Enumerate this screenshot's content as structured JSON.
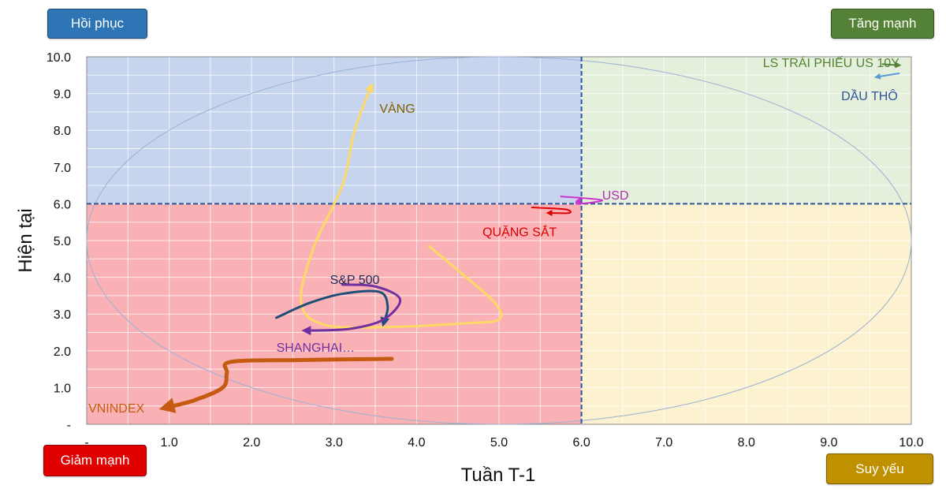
{
  "quadrant_buttons": {
    "top_left": "Hồi phục",
    "top_right": "Tăng mạnh",
    "bottom_left": "Giảm mạnh",
    "bottom_right": "Suy yếu"
  },
  "colors": {
    "q_top_left": "#c6d4ee",
    "q_top_right": "#e4efdc",
    "q_bottom_left": "#f9b1b5",
    "q_bottom_right": "#fdf2cf",
    "divider": "#2f5597",
    "circle": "#9db1d3"
  },
  "chart_data": {
    "type": "line",
    "xlabel": "Tuần T-1",
    "ylabel": "Hiện tại",
    "xlim": [
      0,
      10
    ],
    "ylim": [
      0,
      10
    ],
    "grid": true,
    "center": [
      6,
      6
    ],
    "x_ticks": [
      "-",
      "1.0",
      "2.0",
      "3.0",
      "4.0",
      "5.0",
      "6.0",
      "7.0",
      "8.0",
      "9.0",
      "10.0"
    ],
    "y_ticks": [
      "-",
      "1.0",
      "2.0",
      "3.0",
      "4.0",
      "5.0",
      "6.0",
      "7.0",
      "8.0",
      "9.0",
      "10.0"
    ],
    "series": [
      {
        "name": "VÀNG",
        "color": "#ffd966",
        "label_color": "#7f6000",
        "points": [
          [
            4.15,
            4.85
          ],
          [
            4.55,
            4.1
          ],
          [
            4.95,
            3.3
          ],
          [
            5.0,
            2.85
          ],
          [
            4.6,
            2.75
          ],
          [
            3.7,
            2.65
          ],
          [
            2.9,
            2.7
          ],
          [
            2.6,
            3.3
          ],
          [
            2.75,
            4.8
          ],
          [
            3.1,
            6.5
          ],
          [
            3.25,
            8.0
          ],
          [
            3.45,
            9.2
          ]
        ],
        "label_at": [
          3.55,
          8.6
        ]
      },
      {
        "name": "S&P 500",
        "color": "#1f4e79",
        "label_color": "#1f2a5c",
        "points": [
          [
            2.3,
            2.9
          ],
          [
            2.7,
            3.3
          ],
          [
            3.1,
            3.55
          ],
          [
            3.55,
            3.6
          ],
          [
            3.65,
            3.2
          ],
          [
            3.6,
            2.75
          ]
        ],
        "label_at": [
          2.95,
          3.95
        ]
      },
      {
        "name": "SHANGHAI…",
        "color": "#7030a0",
        "label_color": "#7030a0",
        "points": [
          [
            3.1,
            3.8
          ],
          [
            3.5,
            3.75
          ],
          [
            3.8,
            3.4
          ],
          [
            3.6,
            2.85
          ],
          [
            3.2,
            2.6
          ],
          [
            2.7,
            2.55
          ],
          [
            2.65,
            2.55
          ]
        ],
        "label_at": [
          2.3,
          2.1
        ]
      },
      {
        "name": "VNINDEX",
        "color": "#c55a11",
        "label_color": "#c55a11",
        "points": [
          [
            3.7,
            1.78
          ],
          [
            2.6,
            1.75
          ],
          [
            1.75,
            1.7
          ],
          [
            1.7,
            1.4
          ],
          [
            1.65,
            1.0
          ],
          [
            1.3,
            0.65
          ],
          [
            0.95,
            0.45
          ]
        ],
        "label_at": [
          0.02,
          0.45
        ]
      },
      {
        "name": "USD",
        "color": "#cc33cc",
        "label_color": "#b030b0",
        "points": [
          [
            5.75,
            6.2
          ],
          [
            6.25,
            6.1
          ],
          [
            5.95,
            6.0
          ],
          [
            5.98,
            6.12
          ]
        ],
        "label_at": [
          6.25,
          6.25
        ]
      },
      {
        "name": "QUẶNG SẮT",
        "color": "#e00000",
        "label_color": "#e00000",
        "points": [
          [
            5.4,
            5.9
          ],
          [
            5.8,
            5.85
          ],
          [
            5.85,
            5.75
          ],
          [
            5.6,
            5.75
          ]
        ],
        "label_at": [
          4.8,
          5.25
        ]
      },
      {
        "name": "LS TRÁI PHIẾU US 10Y",
        "color": "#548235",
        "label_color": "#548235",
        "points": [
          [
            9.65,
            9.8
          ],
          [
            9.85,
            9.77
          ]
        ],
        "label_at": [
          8.2,
          9.85
        ]
      },
      {
        "name": "DẦU THÔ",
        "color": "#5b9bd5",
        "label_color": "#2f5597",
        "points": [
          [
            9.85,
            9.55
          ],
          [
            9.58,
            9.45
          ]
        ],
        "label_at": [
          9.15,
          8.95
        ]
      }
    ]
  }
}
